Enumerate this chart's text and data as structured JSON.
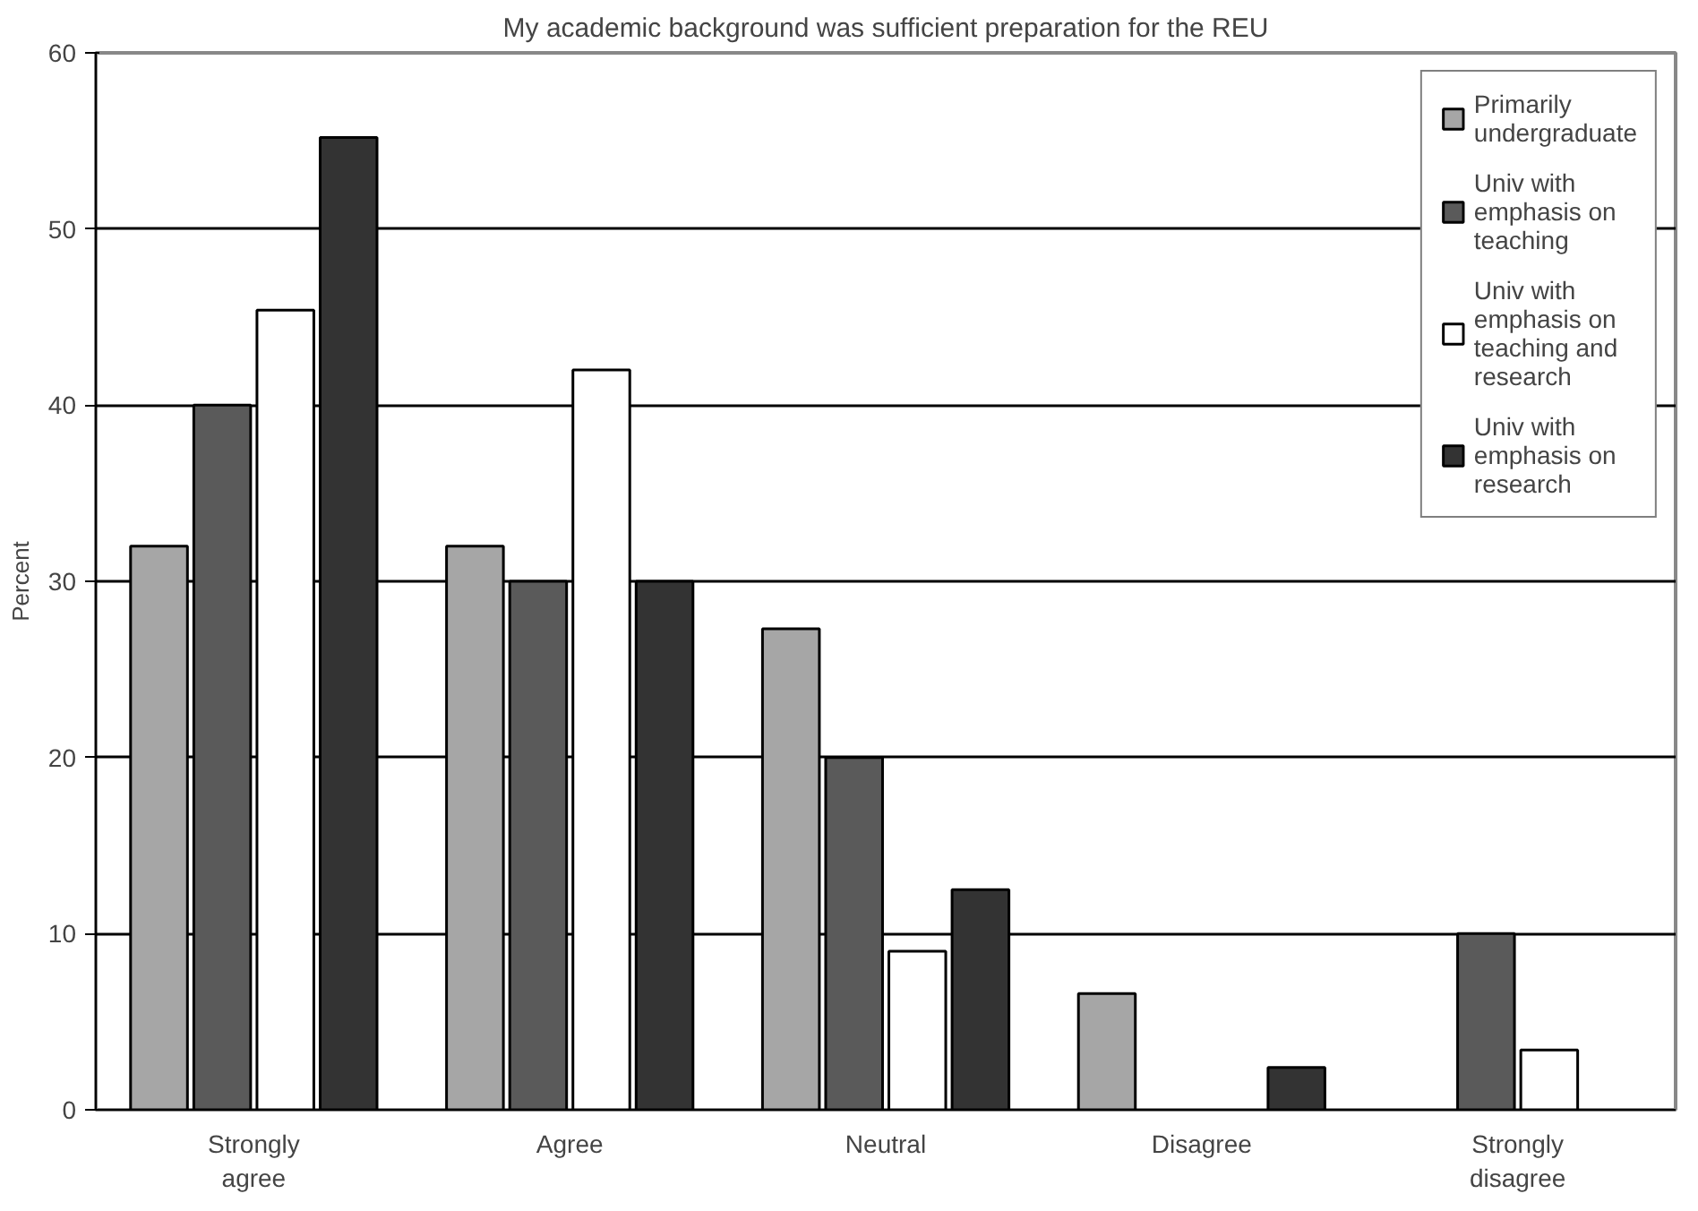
{
  "chart_data": {
    "type": "bar",
    "title": "My academic background was sufficient preparation for the REU",
    "ylabel": "Percent",
    "categories": [
      "Strongly agree",
      "Agree",
      "Neutral",
      "Disagree",
      "Strongly disagree"
    ],
    "series": [
      {
        "name": "Primarily undergraduate",
        "color": "#a6a6a6",
        "values": [
          32,
          32,
          27.3,
          6.6,
          null
        ]
      },
      {
        "name": "Univ with emphasis on teaching",
        "color": "#5a5a5a",
        "values": [
          40,
          30,
          20,
          null,
          10
        ]
      },
      {
        "name": "Univ with emphasis on teaching and research",
        "color": "#ffffff",
        "values": [
          45.4,
          42,
          9,
          null,
          3.4
        ]
      },
      {
        "name": "Univ with emphasis on research",
        "color": "#333333",
        "values": [
          55.2,
          30,
          12.5,
          2.4,
          null
        ]
      }
    ],
    "ylim": [
      0,
      60
    ],
    "yticks": [
      0,
      10,
      20,
      30,
      40,
      50,
      60
    ],
    "grid": "y",
    "legend": "top right"
  }
}
